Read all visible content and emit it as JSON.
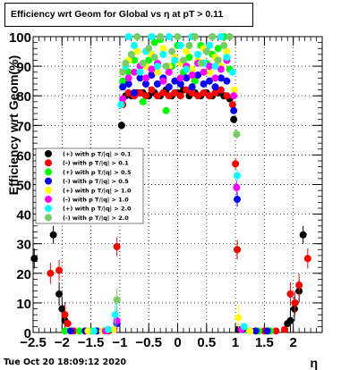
{
  "title": "Efficiency wrt Geom for Global vs   η at pT > 0.11",
  "timestamp": "Tue Oct 20 18:09:12 2020",
  "chart_data": {
    "type": "scatter",
    "title": "Efficiency wrt Geom for Global vs   η at pT > 0.11",
    "xlabel": "η",
    "ylabel": "Efficiency wrt Geom(%)",
    "xlim": [
      -2.5,
      2.5
    ],
    "ylim": [
      0,
      100
    ],
    "xticks": [
      "−2.5",
      "−2",
      "−1.5",
      "−1",
      "−0.5",
      "0",
      "0.5",
      "1",
      "1.5",
      "2"
    ],
    "xtick_values": [
      -2.5,
      -2,
      -1.5,
      -1,
      -0.5,
      0,
      0.5,
      1,
      1.5,
      2
    ],
    "yticks": [
      "0",
      "10",
      "20",
      "30",
      "40",
      "50",
      "60",
      "70",
      "80",
      "90",
      "100"
    ],
    "ytick_values": [
      0,
      10,
      20,
      30,
      40,
      50,
      60,
      70,
      80,
      90,
      100
    ],
    "grid": true,
    "legend_position": "left",
    "series": [
      {
        "name": "(+) with p T/|q| > 0.1",
        "color": "#000000",
        "points": [
          [
            -2.48,
            25
          ],
          [
            -2.15,
            33
          ],
          [
            -2.05,
            13
          ],
          [
            -2.0,
            8
          ],
          [
            -1.95,
            4
          ],
          [
            -1.05,
            3
          ],
          [
            -0.97,
            70
          ],
          [
            -0.9,
            80
          ],
          [
            -0.8,
            80
          ],
          [
            -0.7,
            81
          ],
          [
            -0.6,
            81
          ],
          [
            -0.5,
            80
          ],
          [
            -0.4,
            81
          ],
          [
            -0.3,
            80
          ],
          [
            -0.2,
            82
          ],
          [
            -0.1,
            80
          ],
          [
            0.0,
            81
          ],
          [
            0.1,
            82
          ],
          [
            0.2,
            80
          ],
          [
            0.3,
            81
          ],
          [
            0.4,
            80
          ],
          [
            0.5,
            81
          ],
          [
            0.6,
            80
          ],
          [
            0.7,
            81
          ],
          [
            0.8,
            80
          ],
          [
            0.9,
            79
          ],
          [
            0.97,
            72
          ],
          [
            1.03,
            28
          ],
          [
            1.05,
            1
          ],
          [
            1.9,
            3
          ],
          [
            1.95,
            4
          ],
          [
            2.02,
            8
          ],
          [
            2.1,
            14
          ],
          [
            2.17,
            33
          ]
        ]
      },
      {
        "name": "(-) with p T/|q| > 0.1",
        "color": "#ff0000",
        "points": [
          [
            -2.2,
            20
          ],
          [
            -2.05,
            21
          ],
          [
            -1.95,
            6
          ],
          [
            -1.9,
            3
          ],
          [
            -1.8,
            0.5
          ],
          [
            -1.6,
            0.5
          ],
          [
            -1.4,
            0.5
          ],
          [
            -1.2,
            0.5
          ],
          [
            -1.05,
            29
          ],
          [
            -0.95,
            77
          ],
          [
            -0.85,
            81
          ],
          [
            -0.75,
            80
          ],
          [
            -0.65,
            81
          ],
          [
            -0.55,
            80
          ],
          [
            -0.45,
            82
          ],
          [
            -0.35,
            80
          ],
          [
            -0.25,
            81
          ],
          [
            -0.15,
            80
          ],
          [
            -0.05,
            81
          ],
          [
            0.05,
            80
          ],
          [
            0.15,
            82
          ],
          [
            0.25,
            81
          ],
          [
            0.35,
            80
          ],
          [
            0.45,
            81
          ],
          [
            0.55,
            80
          ],
          [
            0.65,
            81
          ],
          [
            0.75,
            82
          ],
          [
            0.85,
            80
          ],
          [
            0.95,
            77
          ],
          [
            1.0,
            57
          ],
          [
            1.03,
            28
          ],
          [
            1.5,
            0.5
          ],
          [
            1.7,
            0.5
          ],
          [
            1.85,
            1
          ],
          [
            1.95,
            13
          ],
          [
            2.03,
            10
          ],
          [
            2.1,
            16
          ],
          [
            2.25,
            25
          ]
        ]
      },
      {
        "name": "(+) with p T/|q| > 0.5",
        "color": "#00ff00",
        "points": [
          [
            -1.95,
            0.5
          ],
          [
            -1.7,
            0.5
          ],
          [
            -1.5,
            0.5
          ],
          [
            -1.3,
            0.5
          ],
          [
            -1.1,
            1
          ],
          [
            -0.95,
            85
          ],
          [
            -0.85,
            88
          ],
          [
            -0.75,
            92
          ],
          [
            -0.6,
            78
          ],
          [
            -0.5,
            92
          ],
          [
            -0.4,
            98
          ],
          [
            -0.3,
            99
          ],
          [
            -0.2,
            75
          ],
          [
            -0.1,
            90
          ],
          [
            0.0,
            97
          ],
          [
            0.1,
            88
          ],
          [
            0.2,
            93
          ],
          [
            0.3,
            85
          ],
          [
            0.4,
            97
          ],
          [
            0.5,
            91
          ],
          [
            0.6,
            94
          ],
          [
            0.7,
            96
          ],
          [
            0.8,
            100
          ],
          [
            0.9,
            89
          ],
          [
            1.02,
            67
          ],
          [
            1.15,
            1
          ],
          [
            1.4,
            0.5
          ],
          [
            1.6,
            0.5
          ]
        ]
      },
      {
        "name": "(-) with p T/|q| > 0.5",
        "color": "#0000ff",
        "points": [
          [
            -1.85,
            0.5
          ],
          [
            -1.6,
            0.5
          ],
          [
            -1.4,
            0.5
          ],
          [
            -1.2,
            1
          ],
          [
            -1.05,
            3
          ],
          [
            -0.95,
            83
          ],
          [
            -0.85,
            84
          ],
          [
            -0.75,
            81
          ],
          [
            -0.65,
            86
          ],
          [
            -0.55,
            84
          ],
          [
            -0.45,
            87
          ],
          [
            -0.35,
            84
          ],
          [
            -0.25,
            86
          ],
          [
            -0.15,
            83
          ],
          [
            -0.05,
            85
          ],
          [
            0.05,
            84
          ],
          [
            0.15,
            86
          ],
          [
            0.25,
            83
          ],
          [
            0.35,
            87
          ],
          [
            0.45,
            84
          ],
          [
            0.55,
            85
          ],
          [
            0.65,
            83
          ],
          [
            0.75,
            86
          ],
          [
            0.85,
            85
          ],
          [
            0.97,
            75
          ],
          [
            1.03,
            45
          ],
          [
            1.12,
            1
          ],
          [
            1.35,
            0.5
          ],
          [
            1.55,
            0.5
          ]
        ]
      },
      {
        "name": "(+) with p T/|q| > 1.0",
        "color": "#ffff00",
        "points": [
          [
            -1.55,
            0.5
          ],
          [
            -1.3,
            0.5
          ],
          [
            -1.1,
            1
          ],
          [
            -0.95,
            88
          ],
          [
            -0.85,
            92
          ],
          [
            -0.7,
            95
          ],
          [
            -0.55,
            90
          ],
          [
            -0.45,
            94
          ],
          [
            -0.35,
            88
          ],
          [
            -0.25,
            96
          ],
          [
            -0.15,
            90
          ],
          [
            -0.05,
            93
          ],
          [
            0.05,
            91
          ],
          [
            0.15,
            95
          ],
          [
            0.25,
            89
          ],
          [
            0.35,
            92
          ],
          [
            0.45,
            96
          ],
          [
            0.55,
            88
          ],
          [
            0.65,
            93
          ],
          [
            0.75,
            90
          ],
          [
            0.85,
            95
          ],
          [
            0.98,
            82
          ],
          [
            1.05,
            5
          ],
          [
            1.25,
            0.5
          ]
        ]
      },
      {
        "name": "(-) with p T/|q| > 1.0",
        "color": "#ff00ff",
        "points": [
          [
            -1.25,
            0.5
          ],
          [
            -1.05,
            4
          ],
          [
            -0.95,
            79
          ],
          [
            -0.85,
            86
          ],
          [
            -0.75,
            88
          ],
          [
            -0.65,
            90
          ],
          [
            -0.55,
            86
          ],
          [
            -0.45,
            89
          ],
          [
            -0.35,
            91
          ],
          [
            -0.25,
            85
          ],
          [
            -0.15,
            88
          ],
          [
            -0.05,
            92
          ],
          [
            0.05,
            86
          ],
          [
            0.15,
            90
          ],
          [
            0.25,
            87
          ],
          [
            0.35,
            91
          ],
          [
            0.45,
            88
          ],
          [
            0.55,
            90
          ],
          [
            0.65,
            86
          ],
          [
            0.75,
            89
          ],
          [
            0.85,
            92
          ],
          [
            0.97,
            80
          ],
          [
            1.02,
            49
          ],
          [
            1.1,
            1
          ]
        ]
      },
      {
        "name": "(+) with p T/|q| > 2.0",
        "color": "#00ffff",
        "points": [
          [
            -1.45,
            0.5
          ],
          [
            -1.2,
            1
          ],
          [
            -1.08,
            6
          ],
          [
            -0.98,
            77
          ],
          [
            -0.9,
            90
          ],
          [
            -0.85,
            100
          ],
          [
            -0.75,
            97
          ],
          [
            -0.65,
            88
          ],
          [
            -0.55,
            95
          ],
          [
            -0.45,
            100
          ],
          [
            -0.35,
            90
          ],
          [
            -0.25,
            94
          ],
          [
            -0.15,
            100
          ],
          [
            -0.05,
            92
          ],
          [
            0.05,
            97
          ],
          [
            0.15,
            89
          ],
          [
            0.25,
            100
          ],
          [
            0.35,
            94
          ],
          [
            0.45,
            91
          ],
          [
            0.55,
            97
          ],
          [
            0.65,
            90
          ],
          [
            0.75,
            100
          ],
          [
            0.85,
            93
          ],
          [
            0.95,
            88
          ],
          [
            1.03,
            53
          ],
          [
            1.15,
            2
          ]
        ]
      },
      {
        "name": "(-) with p T/|q| > 2.0",
        "color": "#77cc66",
        "points": [
          [
            -1.05,
            11
          ],
          [
            -0.95,
            88
          ],
          [
            -0.9,
            91
          ],
          [
            -0.8,
            94
          ],
          [
            -0.7,
            100
          ],
          [
            -0.6,
            91
          ],
          [
            -0.5,
            96
          ],
          [
            -0.4,
            93
          ],
          [
            -0.3,
            100
          ],
          [
            -0.2,
            90
          ],
          [
            -0.1,
            95
          ],
          [
            0.0,
            100
          ],
          [
            0.1,
            92
          ],
          [
            0.2,
            97
          ],
          [
            0.3,
            100
          ],
          [
            0.4,
            91
          ],
          [
            0.5,
            95
          ],
          [
            0.6,
            100
          ],
          [
            0.7,
            92
          ],
          [
            0.8,
            97
          ],
          [
            0.9,
            100
          ],
          [
            1.02,
            67
          ]
        ]
      }
    ]
  }
}
